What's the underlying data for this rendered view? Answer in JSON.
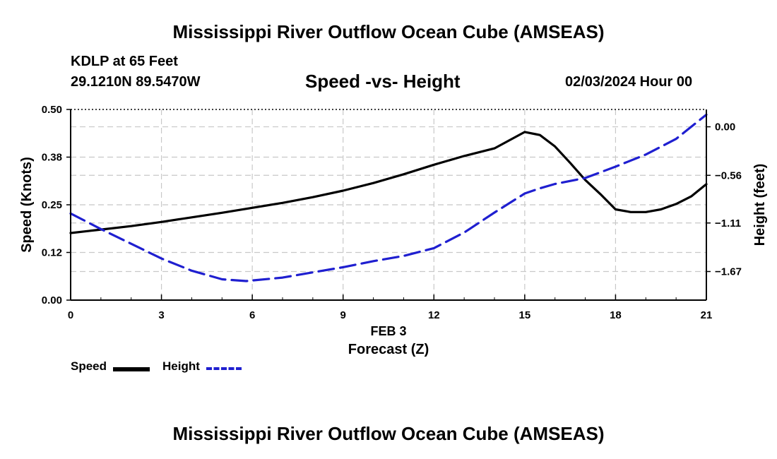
{
  "header": {
    "title": "Mississippi River Outflow Ocean Cube (AMSEAS)",
    "station": "KDLP at 65 Feet",
    "coords": "29.1210N  89.5470W",
    "datetime": "02/03/2024 Hour 00"
  },
  "footer": {
    "title": "Mississippi River Outflow Ocean Cube (AMSEAS)"
  },
  "legend": {
    "speed_label": "Speed",
    "height_label": "Height"
  },
  "colors": {
    "speed": "#000000",
    "height": "#1f1fd0",
    "grid": "#c8c8c8"
  },
  "chart_data": {
    "type": "line",
    "title": "Speed -vs- Height",
    "xlabel": "Forecast (Z)",
    "xsublabel": "FEB 3",
    "ylabel": "Speed (Knots)",
    "y2label": "Height (feet)",
    "xlim": [
      0,
      21
    ],
    "ylim": [
      0,
      0.5
    ],
    "y2lim": [
      -2.0,
      0.2
    ],
    "xticks": [
      0,
      3,
      6,
      9,
      12,
      15,
      18,
      21
    ],
    "xtick_labels": [
      "0",
      "3",
      "6",
      "9",
      "12",
      "15",
      "18",
      "21"
    ],
    "yticks": [
      0,
      0.125,
      0.25,
      0.375,
      0.5
    ],
    "ytick_labels": [
      "0.00",
      "0.12",
      "0.25",
      "0.38",
      "0.50"
    ],
    "y2ticks": [
      0.0,
      -0.56,
      -1.11,
      -1.67
    ],
    "y2tick_labels": [
      "0.00",
      "−0.56",
      "−1.11",
      "−1.67"
    ],
    "grid": true,
    "series": [
      {
        "name": "Speed",
        "axis": "left",
        "style": "solid",
        "x": [
          0,
          1,
          2,
          3,
          4,
          5,
          6,
          7,
          8,
          9,
          10,
          11,
          12,
          13,
          14,
          15,
          15.5,
          16,
          16.5,
          17,
          17.5,
          18,
          18.5,
          19,
          19.5,
          20,
          20.5,
          21
        ],
        "values": [
          0.176,
          0.185,
          0.194,
          0.205,
          0.217,
          0.229,
          0.242,
          0.255,
          0.27,
          0.287,
          0.307,
          0.33,
          0.355,
          0.378,
          0.398,
          0.441,
          0.433,
          0.403,
          0.36,
          0.315,
          0.278,
          0.238,
          0.231,
          0.231,
          0.238,
          0.252,
          0.272,
          0.304
        ]
      },
      {
        "name": "Height",
        "axis": "right",
        "style": "dashed",
        "x": [
          0,
          1,
          2,
          3,
          4,
          5,
          5.8,
          7,
          8,
          9,
          10,
          11,
          12,
          13,
          14,
          15,
          15.5,
          16,
          17,
          18,
          19,
          20,
          21
        ],
        "values": [
          -1.0,
          -1.18,
          -1.35,
          -1.52,
          -1.66,
          -1.76,
          -1.78,
          -1.74,
          -1.68,
          -1.62,
          -1.55,
          -1.49,
          -1.4,
          -1.22,
          -0.99,
          -0.77,
          -0.71,
          -0.66,
          -0.59,
          -0.46,
          -0.32,
          -0.14,
          0.14
        ]
      }
    ]
  }
}
